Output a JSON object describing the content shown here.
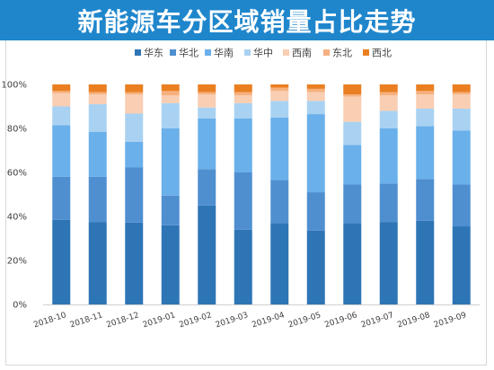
{
  "header": {
    "title": "新能源车分区域销量占比走势"
  },
  "chart_data": {
    "type": "bar",
    "stacked": true,
    "normalized": true,
    "title": "新能源车分区域销量占比走势",
    "categories": [
      "2018-10",
      "2018-11",
      "2018-12",
      "2019-01",
      "2019-02",
      "2019-03",
      "2019-04",
      "2019-05",
      "2019-06",
      "2019-07",
      "2019-08",
      "2019-09"
    ],
    "ylim": [
      0,
      100
    ],
    "yticks": [
      "0%",
      "20%",
      "40%",
      "60%",
      "80%",
      "100%"
    ],
    "grid": false,
    "legend": "top",
    "series": [
      {
        "name": "华东",
        "color": "#2e75b6",
        "values": [
          38.5,
          37.5,
          36.5,
          36.0,
          45.0,
          34.0,
          37.0,
          33.5,
          37.0,
          37.5,
          38.0,
          35.5
        ]
      },
      {
        "name": "华北",
        "color": "#4f8fd0",
        "values": [
          19.5,
          20.5,
          24.5,
          13.5,
          16.5,
          26.0,
          19.5,
          17.5,
          17.5,
          17.5,
          19.0,
          19.0
        ]
      },
      {
        "name": "华南",
        "color": "#6ab0ea",
        "values": [
          23.5,
          20.5,
          11.5,
          30.5,
          23.0,
          24.5,
          28.5,
          35.5,
          18.0,
          25.0,
          24.0,
          24.5
        ]
      },
      {
        "name": "华中",
        "color": "#a9d2f2",
        "values": [
          8.5,
          12.5,
          12.5,
          11.5,
          5.0,
          7.0,
          7.5,
          6.0,
          10.5,
          8.0,
          8.0,
          10.0
        ]
      },
      {
        "name": "西南",
        "color": "#f9ceb2",
        "values": [
          6.0,
          4.5,
          8.5,
          3.5,
          6.0,
          3.5,
          4.5,
          4.0,
          11.5,
          7.0,
          6.5,
          6.5
        ]
      },
      {
        "name": "东北",
        "color": "#f6b07e",
        "values": [
          1.0,
          1.0,
          1.0,
          2.0,
          1.0,
          1.5,
          1.5,
          1.5,
          1.0,
          1.5,
          1.5,
          1.0
        ]
      },
      {
        "name": "西北",
        "color": "#ea7f22",
        "values": [
          3.0,
          3.5,
          3.5,
          3.0,
          3.5,
          3.5,
          1.5,
          2.0,
          4.5,
          3.5,
          3.0,
          3.5
        ]
      }
    ]
  }
}
